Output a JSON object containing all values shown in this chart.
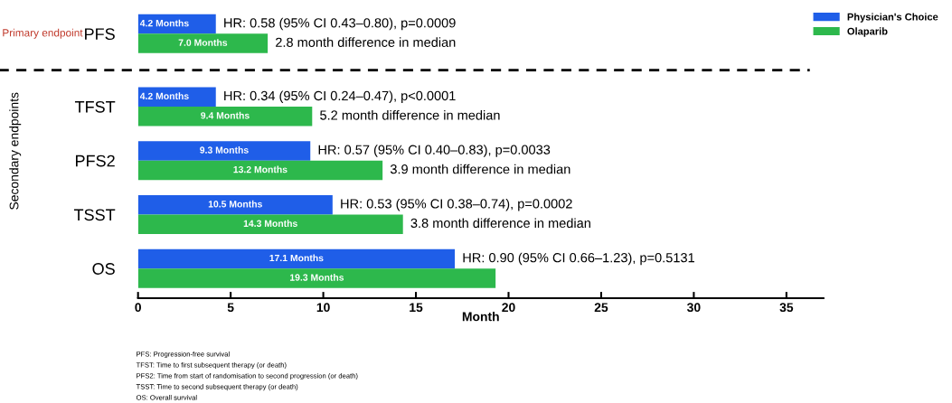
{
  "chart_data": {
    "type": "bar",
    "orientation": "horizontal",
    "xlabel": "Month",
    "ylabel": "Secondary endpoints",
    "categories": [
      "PFS",
      "TFST",
      "PFS2",
      "TSST",
      "OS"
    ],
    "series": [
      {
        "name": "Physician's Choice",
        "color": "#1f5ee8",
        "values": [
          4.2,
          4.2,
          9.3,
          10.5,
          17.1
        ],
        "value_labels": [
          "4.2 Months",
          "4.2 Months",
          "9.3 Months",
          "10.5 Months",
          "17.1 Months"
        ]
      },
      {
        "name": "Olaparib",
        "color": "#2db84c",
        "values": [
          7.0,
          9.4,
          13.2,
          14.3,
          19.3
        ],
        "value_labels": [
          "7.0 Months",
          "9.4 Months",
          "13.2 Months",
          "14.3 Months",
          "19.3 Months"
        ]
      }
    ],
    "xlim": [
      0,
      37
    ],
    "xticks": [
      0,
      5,
      10,
      15,
      20,
      25,
      30,
      35
    ],
    "grid": false,
    "legend": "top right",
    "annotations": [
      "HR: 0.58 (95% CI 0.43–0.80), p=0.0009",
      "2.8 month difference in median",
      "HR: 0.34 (95% CI 0.24–0.47), p<0.0001",
      "5.2 month difference in median",
      "HR: 0.57 (95% CI 0.40–0.83), p=0.0033",
      "3.9 month difference in median",
      "HR: 0.53 (95% CI 0.38–0.74), p=0.0002",
      "3.8 month difference in median",
      "HR: 0.90 (95% CI 0.66–1.23), p=0.5131",
      "Primary endpoint",
      "PFS: Progression-free survival",
      "TFST: Time to first subsequent therapy (or death)",
      "PFS2: Time from start of randomisation to second progression (or death)",
      "TSST: Time to second subsequent therapy (or death)",
      "OS: Overall survival"
    ]
  }
}
